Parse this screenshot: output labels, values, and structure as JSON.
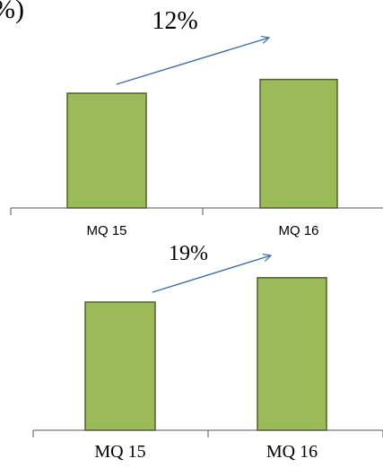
{
  "header_fragment": "%)",
  "colors": {
    "bar_fill": "#9BBB59",
    "bar_stroke": "#4F6228",
    "arrow": "#3A6EA5",
    "axis": "#555555",
    "text": "#000000"
  },
  "chart_data": [
    {
      "type": "bar",
      "categories": [
        "MQ 15",
        "MQ 16"
      ],
      "values": [
        100,
        112
      ],
      "annotations": [
        {
          "text": "12%",
          "kind": "growth-arrow"
        }
      ],
      "xlabel": "",
      "ylabel": "",
      "grid": false
    },
    {
      "type": "bar",
      "categories": [
        "MQ 15",
        "MQ 16"
      ],
      "values": [
        100,
        119
      ],
      "annotations": [
        {
          "text": "19%",
          "kind": "growth-arrow"
        }
      ],
      "xlabel": "",
      "ylabel": "",
      "grid": false
    }
  ]
}
